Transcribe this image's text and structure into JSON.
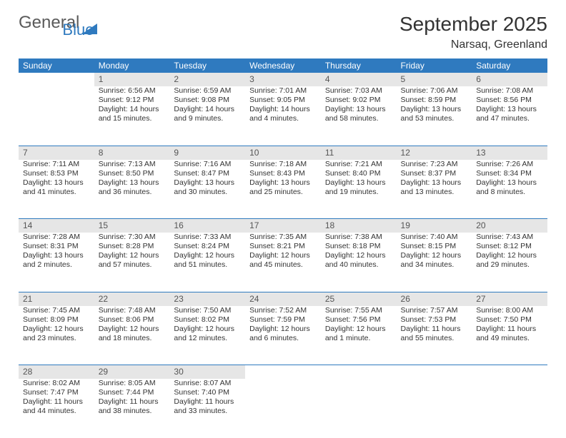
{
  "brand": {
    "part1": "General",
    "part2": "Blue"
  },
  "title": "September 2025",
  "location": "Narsaq, Greenland",
  "colors": {
    "header_bg": "#2f7abf",
    "header_text": "#ffffff",
    "daynum_bg": "#e6e6e6",
    "rule": "#2f7abf",
    "text": "#333333"
  },
  "weekdays": [
    "Sunday",
    "Monday",
    "Tuesday",
    "Wednesday",
    "Thursday",
    "Friday",
    "Saturday"
  ],
  "weeks": [
    [
      null,
      {
        "n": "1",
        "sr": "Sunrise: 6:56 AM",
        "ss": "Sunset: 9:12 PM",
        "d1": "Daylight: 14 hours",
        "d2": "and 15 minutes."
      },
      {
        "n": "2",
        "sr": "Sunrise: 6:59 AM",
        "ss": "Sunset: 9:08 PM",
        "d1": "Daylight: 14 hours",
        "d2": "and 9 minutes."
      },
      {
        "n": "3",
        "sr": "Sunrise: 7:01 AM",
        "ss": "Sunset: 9:05 PM",
        "d1": "Daylight: 14 hours",
        "d2": "and 4 minutes."
      },
      {
        "n": "4",
        "sr": "Sunrise: 7:03 AM",
        "ss": "Sunset: 9:02 PM",
        "d1": "Daylight: 13 hours",
        "d2": "and 58 minutes."
      },
      {
        "n": "5",
        "sr": "Sunrise: 7:06 AM",
        "ss": "Sunset: 8:59 PM",
        "d1": "Daylight: 13 hours",
        "d2": "and 53 minutes."
      },
      {
        "n": "6",
        "sr": "Sunrise: 7:08 AM",
        "ss": "Sunset: 8:56 PM",
        "d1": "Daylight: 13 hours",
        "d2": "and 47 minutes."
      }
    ],
    [
      {
        "n": "7",
        "sr": "Sunrise: 7:11 AM",
        "ss": "Sunset: 8:53 PM",
        "d1": "Daylight: 13 hours",
        "d2": "and 41 minutes."
      },
      {
        "n": "8",
        "sr": "Sunrise: 7:13 AM",
        "ss": "Sunset: 8:50 PM",
        "d1": "Daylight: 13 hours",
        "d2": "and 36 minutes."
      },
      {
        "n": "9",
        "sr": "Sunrise: 7:16 AM",
        "ss": "Sunset: 8:47 PM",
        "d1": "Daylight: 13 hours",
        "d2": "and 30 minutes."
      },
      {
        "n": "10",
        "sr": "Sunrise: 7:18 AM",
        "ss": "Sunset: 8:43 PM",
        "d1": "Daylight: 13 hours",
        "d2": "and 25 minutes."
      },
      {
        "n": "11",
        "sr": "Sunrise: 7:21 AM",
        "ss": "Sunset: 8:40 PM",
        "d1": "Daylight: 13 hours",
        "d2": "and 19 minutes."
      },
      {
        "n": "12",
        "sr": "Sunrise: 7:23 AM",
        "ss": "Sunset: 8:37 PM",
        "d1": "Daylight: 13 hours",
        "d2": "and 13 minutes."
      },
      {
        "n": "13",
        "sr": "Sunrise: 7:26 AM",
        "ss": "Sunset: 8:34 PM",
        "d1": "Daylight: 13 hours",
        "d2": "and 8 minutes."
      }
    ],
    [
      {
        "n": "14",
        "sr": "Sunrise: 7:28 AM",
        "ss": "Sunset: 8:31 PM",
        "d1": "Daylight: 13 hours",
        "d2": "and 2 minutes."
      },
      {
        "n": "15",
        "sr": "Sunrise: 7:30 AM",
        "ss": "Sunset: 8:28 PM",
        "d1": "Daylight: 12 hours",
        "d2": "and 57 minutes."
      },
      {
        "n": "16",
        "sr": "Sunrise: 7:33 AM",
        "ss": "Sunset: 8:24 PM",
        "d1": "Daylight: 12 hours",
        "d2": "and 51 minutes."
      },
      {
        "n": "17",
        "sr": "Sunrise: 7:35 AM",
        "ss": "Sunset: 8:21 PM",
        "d1": "Daylight: 12 hours",
        "d2": "and 45 minutes."
      },
      {
        "n": "18",
        "sr": "Sunrise: 7:38 AM",
        "ss": "Sunset: 8:18 PM",
        "d1": "Daylight: 12 hours",
        "d2": "and 40 minutes."
      },
      {
        "n": "19",
        "sr": "Sunrise: 7:40 AM",
        "ss": "Sunset: 8:15 PM",
        "d1": "Daylight: 12 hours",
        "d2": "and 34 minutes."
      },
      {
        "n": "20",
        "sr": "Sunrise: 7:43 AM",
        "ss": "Sunset: 8:12 PM",
        "d1": "Daylight: 12 hours",
        "d2": "and 29 minutes."
      }
    ],
    [
      {
        "n": "21",
        "sr": "Sunrise: 7:45 AM",
        "ss": "Sunset: 8:09 PM",
        "d1": "Daylight: 12 hours",
        "d2": "and 23 minutes."
      },
      {
        "n": "22",
        "sr": "Sunrise: 7:48 AM",
        "ss": "Sunset: 8:06 PM",
        "d1": "Daylight: 12 hours",
        "d2": "and 18 minutes."
      },
      {
        "n": "23",
        "sr": "Sunrise: 7:50 AM",
        "ss": "Sunset: 8:02 PM",
        "d1": "Daylight: 12 hours",
        "d2": "and 12 minutes."
      },
      {
        "n": "24",
        "sr": "Sunrise: 7:52 AM",
        "ss": "Sunset: 7:59 PM",
        "d1": "Daylight: 12 hours",
        "d2": "and 6 minutes."
      },
      {
        "n": "25",
        "sr": "Sunrise: 7:55 AM",
        "ss": "Sunset: 7:56 PM",
        "d1": "Daylight: 12 hours",
        "d2": "and 1 minute."
      },
      {
        "n": "26",
        "sr": "Sunrise: 7:57 AM",
        "ss": "Sunset: 7:53 PM",
        "d1": "Daylight: 11 hours",
        "d2": "and 55 minutes."
      },
      {
        "n": "27",
        "sr": "Sunrise: 8:00 AM",
        "ss": "Sunset: 7:50 PM",
        "d1": "Daylight: 11 hours",
        "d2": "and 49 minutes."
      }
    ],
    [
      {
        "n": "28",
        "sr": "Sunrise: 8:02 AM",
        "ss": "Sunset: 7:47 PM",
        "d1": "Daylight: 11 hours",
        "d2": "and 44 minutes."
      },
      {
        "n": "29",
        "sr": "Sunrise: 8:05 AM",
        "ss": "Sunset: 7:44 PM",
        "d1": "Daylight: 11 hours",
        "d2": "and 38 minutes."
      },
      {
        "n": "30",
        "sr": "Sunrise: 8:07 AM",
        "ss": "Sunset: 7:40 PM",
        "d1": "Daylight: 11 hours",
        "d2": "and 33 minutes."
      },
      null,
      null,
      null,
      null
    ]
  ]
}
